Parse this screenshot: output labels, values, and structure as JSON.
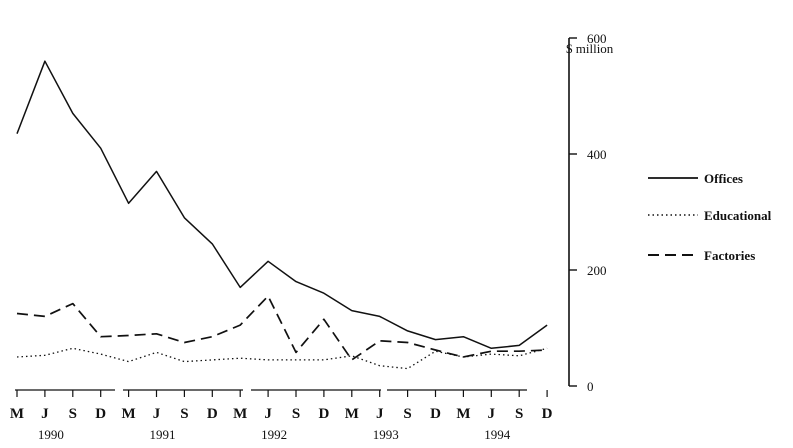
{
  "chart_data": {
    "type": "line",
    "ylabel": "$ million",
    "ylim": [
      0,
      600
    ],
    "y_ticks": [
      0,
      200,
      400,
      600
    ],
    "y_tick_labels": [
      "0",
      "200",
      "400",
      "600"
    ],
    "y_axis_side": "right",
    "categories": [
      "M",
      "J",
      "S",
      "D",
      "M",
      "J",
      "S",
      "D",
      "M",
      "J",
      "S",
      "D",
      "M",
      "J",
      "S",
      "D",
      "M",
      "J",
      "S",
      "D"
    ],
    "years": [
      {
        "label": "1990",
        "at_index": 1
      },
      {
        "label": "1991",
        "at_index": 5
      },
      {
        "label": "1992",
        "at_index": 9
      },
      {
        "label": "1993",
        "at_index": 13
      },
      {
        "label": "1994",
        "at_index": 17
      }
    ],
    "legend_position": "right",
    "grid": false,
    "series": [
      {
        "name": "Offices",
        "style": "solid",
        "values": [
          435,
          560,
          470,
          410,
          315,
          370,
          290,
          245,
          170,
          215,
          180,
          160,
          130,
          120,
          95,
          80,
          85,
          65,
          70,
          105
        ]
      },
      {
        "name": "Educational",
        "style": "dotted",
        "values": [
          50,
          53,
          65,
          55,
          42,
          58,
          42,
          45,
          48,
          45,
          45,
          45,
          52,
          35,
          30,
          60,
          50,
          55,
          52,
          65
        ]
      },
      {
        "name": "Factories",
        "style": "dashed",
        "values": [
          125,
          120,
          142,
          85,
          87,
          90,
          75,
          85,
          105,
          155,
          58,
          115,
          45,
          78,
          75,
          62,
          50,
          60,
          60,
          62
        ]
      }
    ]
  }
}
